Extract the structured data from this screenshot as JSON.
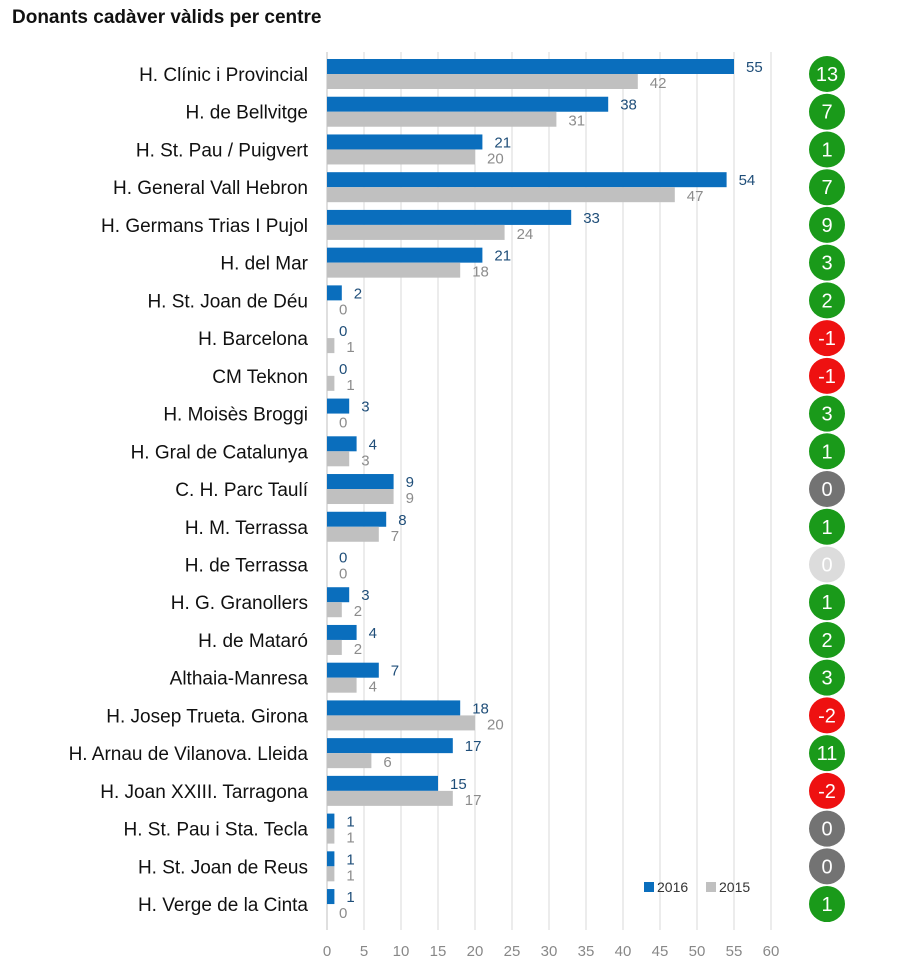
{
  "chart_data": {
    "type": "bar",
    "title": "Donants cadàver vàlids per centre",
    "categories": [
      "H. Clínic i Provincial",
      "H. de Bellvitge",
      "H.  St. Pau / Puigvert",
      "H. General Vall Hebron",
      "H. Germans Trias I Pujol",
      "H. del Mar",
      "H. St. Joan de Déu",
      "H. Barcelona",
      "CM Teknon",
      "H. Moisès Broggi",
      "H. Gral de Catalunya",
      "C. H. Parc Taulí",
      "H. M. Terrassa",
      "H. de Terrassa",
      "H. G. Granollers",
      "H. de Mataró",
      "Althaia-Manresa",
      "H. Josep Trueta. Girona",
      "H. Arnau de Vilanova. Lleida",
      "H. Joan XXIII. Tarragona",
      "H. St. Pau i Sta. Tecla",
      "H. St. Joan de Reus",
      "H. Verge de la Cinta"
    ],
    "series": [
      {
        "name": "2016",
        "color": "#0a6ebd",
        "values": [
          55,
          38,
          21,
          54,
          33,
          21,
          2,
          0,
          0,
          3,
          4,
          9,
          8,
          0,
          3,
          4,
          7,
          18,
          17,
          15,
          1,
          1,
          1
        ]
      },
      {
        "name": "2015",
        "color": "#c0c0c0",
        "values": [
          42,
          31,
          20,
          47,
          24,
          18,
          0,
          1,
          1,
          0,
          3,
          9,
          7,
          0,
          2,
          2,
          4,
          20,
          6,
          17,
          1,
          1,
          0
        ]
      }
    ],
    "differences": [
      "13",
      "7",
      "1",
      "7",
      "9",
      "3",
      "2",
      "-1",
      "-1",
      "3",
      "1",
      "0",
      "1",
      "0",
      "1",
      "2",
      "3",
      "-2",
      "11",
      "-2",
      "0",
      "0",
      "1"
    ],
    "difference_colors": {
      "positive": "#1a9a1a",
      "negative": "#ee1111",
      "zero": "#737373",
      "zero_no_activity": "#dcdcdc"
    },
    "difference_status": [
      "positive",
      "positive",
      "positive",
      "positive",
      "positive",
      "positive",
      "positive",
      "negative",
      "negative",
      "positive",
      "positive",
      "zero",
      "positive",
      "zero_no_activity",
      "positive",
      "positive",
      "positive",
      "negative",
      "positive",
      "negative",
      "zero",
      "zero",
      "positive"
    ],
    "x_ticks": [
      "0",
      "5",
      "10",
      "15",
      "20",
      "25",
      "30",
      "35",
      "40",
      "45",
      "50",
      "55",
      "60"
    ],
    "xlim": [
      0,
      60
    ],
    "grid": true,
    "legend_position": "bottom-right",
    "label_colors": {
      "2016": "#1f4e79",
      "2015": "#8c8c8c"
    }
  }
}
